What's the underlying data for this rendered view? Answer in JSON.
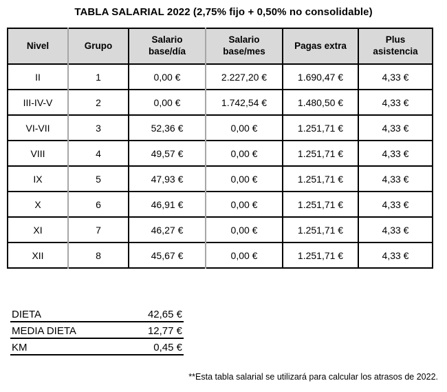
{
  "title": "TABLA SALARIAL 2022 (2,75% fijo + 0,50% no consolidable)",
  "table": {
    "headers": [
      "Nivel",
      "Grupo",
      "Salario\nbase/día",
      "Salario\nbase/mes",
      "Pagas extra",
      "Plus\nasistencia"
    ],
    "rows": [
      [
        "II",
        "1",
        "0,00 €",
        "2.227,20 €",
        "1.690,47 €",
        "4,33 €"
      ],
      [
        "III-IV-V",
        "2",
        "0,00 €",
        "1.742,54 €",
        "1.480,50 €",
        "4,33 €"
      ],
      [
        "VI-VII",
        "3",
        "52,36 €",
        "0,00 €",
        "1.251,71 €",
        "4,33 €"
      ],
      [
        "VIII",
        "4",
        "49,57 €",
        "0,00 €",
        "1.251,71 €",
        "4,33 €"
      ],
      [
        "IX",
        "5",
        "47,93 €",
        "0,00 €",
        "1.251,71 €",
        "4,33 €"
      ],
      [
        "X",
        "6",
        "46,91 €",
        "0,00 €",
        "1.251,71 €",
        "4,33 €"
      ],
      [
        "XI",
        "7",
        "46,27 €",
        "0,00 €",
        "1.251,71 €",
        "4,33 €"
      ],
      [
        "XII",
        "8",
        "45,67 €",
        "0,00 €",
        "1.251,71 €",
        "4,33 €"
      ]
    ]
  },
  "allowances": [
    {
      "label": "DIETA",
      "value": "42,65 €"
    },
    {
      "label": "MEDIA DIETA",
      "value": "12,77 €"
    },
    {
      "label": "KM",
      "value": "0,45 €"
    }
  ],
  "footnote": "**Esta tabla salarial se utilizará para calcular los atrasos de 2022.",
  "colors": {
    "header_bg": "#d9d9d9",
    "grid_black": "#000000",
    "grid_gray": "#a6a6a6"
  }
}
